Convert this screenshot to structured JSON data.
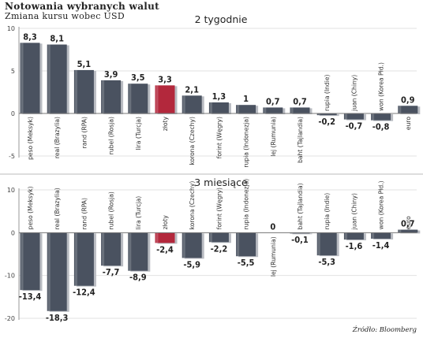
{
  "header": {
    "title": "Notowania wybranych walut",
    "subtitle": "Zmiana kursu wobec USD"
  },
  "source": "Źródło: Bloomberg",
  "colors": {
    "bar": "#4a5260",
    "highlight": "#b3283c",
    "grid": "#e2e2e2"
  },
  "chart_data": [
    {
      "type": "bar",
      "title": "2 tygodnie",
      "ylim": [
        -5,
        10
      ],
      "yticks": [
        -5,
        0,
        5,
        10
      ],
      "grid": true,
      "highlight_category": "złoty",
      "categories": [
        "peso (Meksyk)",
        "real (Brazylia)",
        "rand (RPA)",
        "rubel (Rosja)",
        "lira (Turcja)",
        "złoty",
        "korona (Czechy)",
        "forint (Węgry)",
        "rupia (Indonezja)",
        "lej (Rumunia)",
        "baht (Tajlandia)",
        "rupia (Indie)",
        "juan (Chiny)",
        "won (Korea Płd.)",
        "euro"
      ],
      "values": [
        8.3,
        8.1,
        5.1,
        3.9,
        3.5,
        3.3,
        2.1,
        1.3,
        1,
        0.7,
        0.7,
        -0.2,
        -0.7,
        -0.8,
        0.9
      ],
      "value_labels": [
        "8,3",
        "8,1",
        "5,1",
        "3,9",
        "3,5",
        "3,3",
        "2,1",
        "1,3",
        "1",
        "0,7",
        "0,7",
        "-0,2",
        "-0,7",
        "-0,8",
        "0,9"
      ]
    },
    {
      "type": "bar",
      "title": "3 miesiące",
      "ylim": [
        -20,
        10
      ],
      "yticks": [
        -20,
        -10,
        0,
        10
      ],
      "grid": true,
      "highlight_category": "złoty",
      "categories": [
        "peso (Meksyk)",
        "real (Brazylia)",
        "rand (RPA)",
        "rubel (Rosja)",
        "lira (Turcja)",
        "złoty",
        "korona (Czechy)",
        "forint (Węgry)",
        "rupia (Indonezja)",
        "lej (Rumunia)",
        "baht (Tajlandia)",
        "rupia (Indie)",
        "juan (Chiny)",
        "won (Korea Płd.)",
        "euro"
      ],
      "values": [
        -13.4,
        -18.3,
        -12.4,
        -7.7,
        -8.9,
        -2.4,
        -5.9,
        -2.2,
        -5.5,
        0,
        -0.1,
        -5.3,
        -1.6,
        -1.4,
        0.7
      ],
      "value_labels": [
        "-13,4",
        "-18,3",
        "-12,4",
        "-7,7",
        "-8,9",
        "-2,4",
        "-5,9",
        "-2,2",
        "-5,5",
        "0",
        "-0,1",
        "-5,3",
        "-1,6",
        "-1,4",
        "0,7"
      ]
    }
  ]
}
